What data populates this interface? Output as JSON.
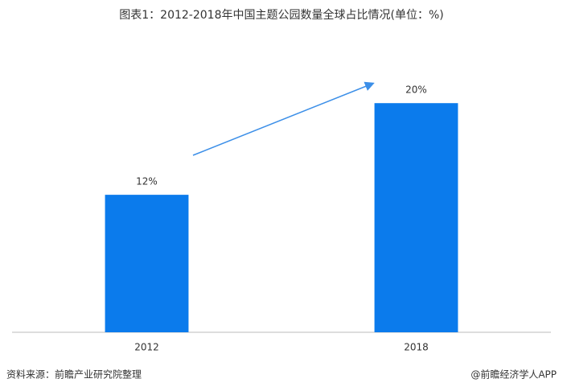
{
  "chart_data": {
    "type": "bar",
    "title": "图表1：2012-2018年中国主题公园数量全球占比情况(单位：%)",
    "categories": [
      "2012",
      "2018"
    ],
    "values": [
      12,
      20
    ],
    "value_labels": [
      "12%",
      "20%"
    ],
    "color": "#0b7bec",
    "ylim": [
      0,
      25
    ],
    "source": "资料来源：前瞻产业研究院整理",
    "credit": "@前瞻经济学人APP"
  }
}
